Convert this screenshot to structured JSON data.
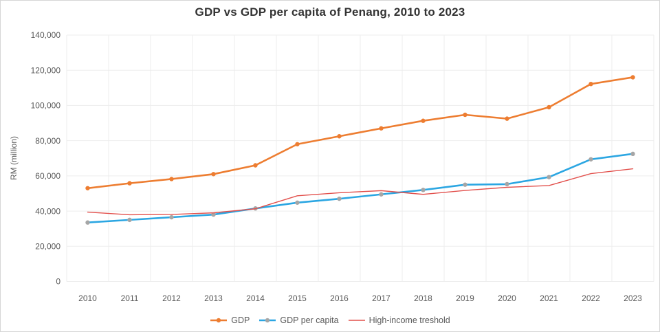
{
  "chart_data": {
    "type": "line",
    "title": "GDP vs GDP per capita of Penang, 2010 to 2023",
    "ylabel": "RM (million)",
    "xlabel": "",
    "categories": [
      "2010",
      "2011",
      "2012",
      "2013",
      "2014",
      "2015",
      "2016",
      "2017",
      "2018",
      "2019",
      "2020",
      "2021",
      "2022",
      "2023"
    ],
    "series": [
      {
        "name": "GDP",
        "color": "#ED7D31",
        "marker_color": "#ED7D31",
        "line_width": 2.6,
        "values": [
          53000,
          55800,
          58200,
          61000,
          66000,
          78000,
          82500,
          87000,
          91300,
          94700,
          92500,
          99000,
          112200,
          116000
        ]
      },
      {
        "name": "GDP per capita",
        "color": "#2BA6E2",
        "marker_color": "#A6A6A6",
        "line_width": 2.6,
        "values": [
          33500,
          35000,
          36500,
          38000,
          41500,
          44800,
          47000,
          49500,
          52000,
          55000,
          55300,
          59300,
          69400,
          72500
        ]
      },
      {
        "name": "High-income treshold",
        "color": "#E2504C",
        "marker_color": null,
        "line_width": 1.4,
        "values": [
          39400,
          37900,
          38100,
          39000,
          41300,
          48700,
          50400,
          51600,
          49500,
          51700,
          53500,
          54500,
          61300,
          64000
        ]
      }
    ],
    "ylim": [
      0,
      140000
    ],
    "ytick_step": 20000,
    "grid": true,
    "legend_position": "bottom",
    "colors": {
      "grid": "#ededed",
      "axis_text": "#595959",
      "title_text": "#333333",
      "background": "#ffffff",
      "frame_border": "#d6d6d6"
    }
  }
}
